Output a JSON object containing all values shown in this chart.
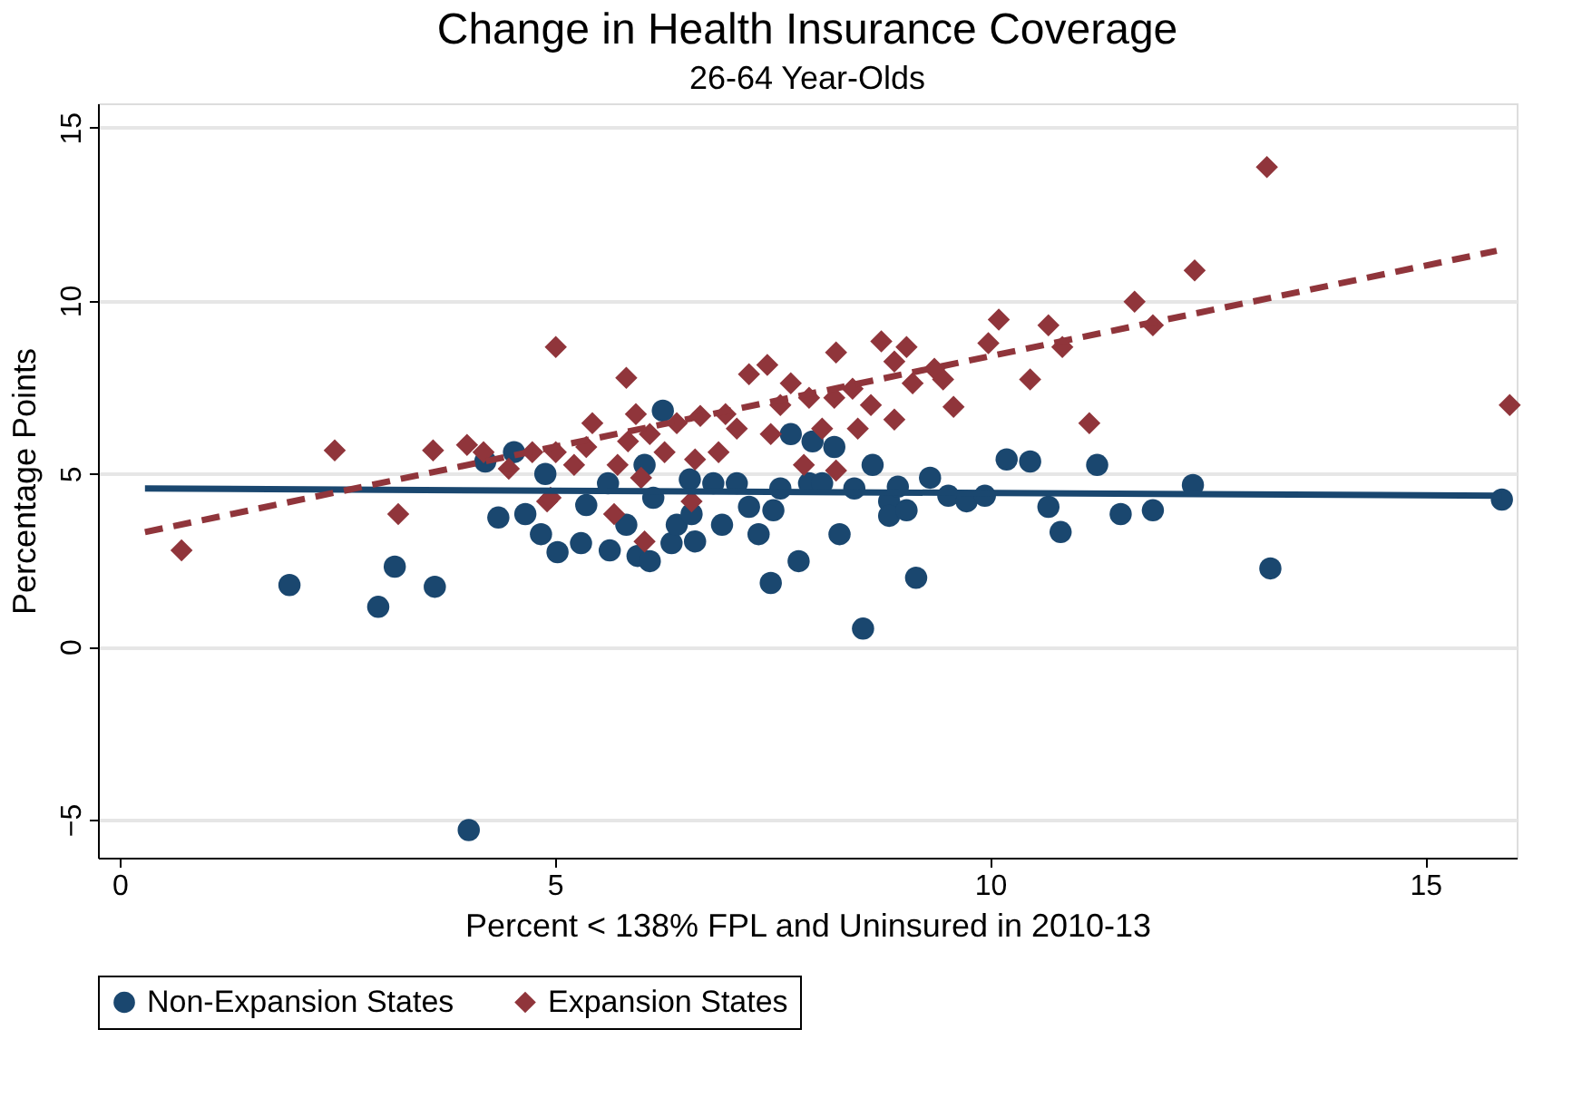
{
  "chart_data": {
    "type": "scatter",
    "title": "Change in Health Insurance Coverage",
    "subtitle": "26-64 Year-Olds",
    "xlabel": "Percent < 138% FPL and Uninsured in 2010-13",
    "ylabel": "Percentage Points",
    "xlim": [
      -0.25,
      16.05
    ],
    "ylim": [
      -6.1,
      15.7
    ],
    "xticks": [
      0,
      5,
      10,
      15
    ],
    "yticks": [
      -5,
      0,
      5,
      10,
      15
    ],
    "grid": "y",
    "legend": "bottom",
    "series": [
      {
        "name": "Non-Expansion States",
        "type": "scatter",
        "marker": "circle",
        "color": "#1a476f",
        "x": [
          1.95,
          2.97,
          3.16,
          3.62,
          4.01,
          4.2,
          4.35,
          4.53,
          4.66,
          4.84,
          4.89,
          5.03,
          5.3,
          5.36,
          5.61,
          5.63,
          5.82,
          5.95,
          6.09,
          6.13,
          6.24,
          6.03,
          6.34,
          6.4,
          6.57,
          6.61,
          6.55,
          6.82,
          6.92,
          7.09,
          7.23,
          7.34,
          7.51,
          7.48,
          7.59,
          7.8,
          7.92,
          7.71,
          7.96,
          8.07,
          8.21,
          8.27,
          8.44,
          8.65,
          8.84,
          8.84,
          9.04,
          8.94,
          9.15,
          8.54,
          9.31,
          9.52,
          9.73,
          9.94,
          10.19,
          10.46,
          10.67,
          10.81,
          11.23,
          11.5,
          11.87,
          12.33,
          13.22,
          15.88
        ],
        "values": [
          1.78,
          1.15,
          2.31,
          1.73,
          -5.3,
          5.35,
          3.73,
          5.62,
          3.83,
          3.25,
          4.99,
          2.73,
          2.99,
          4.09,
          4.72,
          2.78,
          3.52,
          2.62,
          2.47,
          4.3,
          6.82,
          5.25,
          2.99,
          3.52,
          3.83,
          3.04,
          4.83,
          4.72,
          3.52,
          4.72,
          4.04,
          3.25,
          3.94,
          1.84,
          4.57,
          2.47,
          4.72,
          6.14,
          5.93,
          4.72,
          5.77,
          3.25,
          4.57,
          5.25,
          4.2,
          3.78,
          3.94,
          4.62,
          1.99,
          0.52,
          4.88,
          4.36,
          4.2,
          4.36,
          5.41,
          5.35,
          4.04,
          3.31,
          5.25,
          3.83,
          3.94,
          4.67,
          2.26,
          4.25
        ]
      },
      {
        "name": "Expansion States",
        "type": "scatter",
        "marker": "diamond",
        "color": "#90353b",
        "x": [
          0.71,
          2.47,
          3.2,
          3.6,
          3.99,
          4.18,
          4.47,
          4.74,
          4.91,
          5.01,
          4.95,
          5.01,
          5.22,
          5.36,
          5.43,
          5.72,
          5.68,
          5.82,
          5.84,
          5.93,
          5.99,
          6.03,
          6.09,
          6.26,
          6.4,
          6.57,
          6.61,
          6.67,
          6.88,
          6.96,
          7.09,
          7.23,
          7.44,
          7.48,
          7.59,
          7.71,
          7.86,
          7.92,
          8.07,
          8.23,
          8.21,
          8.23,
          8.42,
          8.48,
          8.63,
          8.75,
          8.9,
          8.9,
          9.04,
          9.11,
          9.36,
          9.46,
          9.58,
          9.98,
          10.1,
          10.46,
          10.67,
          10.83,
          11.14,
          11.66,
          11.87,
          12.35,
          13.18,
          15.97
        ],
        "values": [
          2.78,
          5.67,
          3.83,
          5.67,
          5.83,
          5.62,
          5.14,
          5.62,
          4.2,
          8.66,
          4.3,
          5.62,
          5.25,
          5.77,
          6.46,
          5.25,
          3.83,
          7.77,
          5.93,
          6.72,
          4.88,
          3.04,
          6.14,
          5.62,
          6.46,
          4.2,
          5.41,
          6.67,
          5.62,
          6.72,
          6.3,
          7.87,
          8.14,
          6.14,
          6.98,
          7.61,
          5.25,
          7.19,
          6.3,
          8.5,
          7.19,
          5.09,
          7.45,
          6.3,
          6.98,
          8.82,
          8.24,
          6.56,
          8.66,
          7.61,
          8.03,
          7.72,
          6.93,
          8.77,
          9.45,
          7.72,
          9.29,
          8.66,
          6.46,
          9.97,
          9.29,
          10.87,
          13.86,
          6.98
        ]
      },
      {
        "type": "line",
        "line_style": "solid",
        "color": "#1a476f",
        "x": [
          0.29,
          15.88
        ],
        "values": [
          4.57,
          4.36
        ]
      },
      {
        "type": "line",
        "line_style": "dashed",
        "color": "#90353b",
        "x": [
          0.29,
          15.82
        ],
        "values": [
          3.31,
          11.44
        ]
      }
    ]
  }
}
